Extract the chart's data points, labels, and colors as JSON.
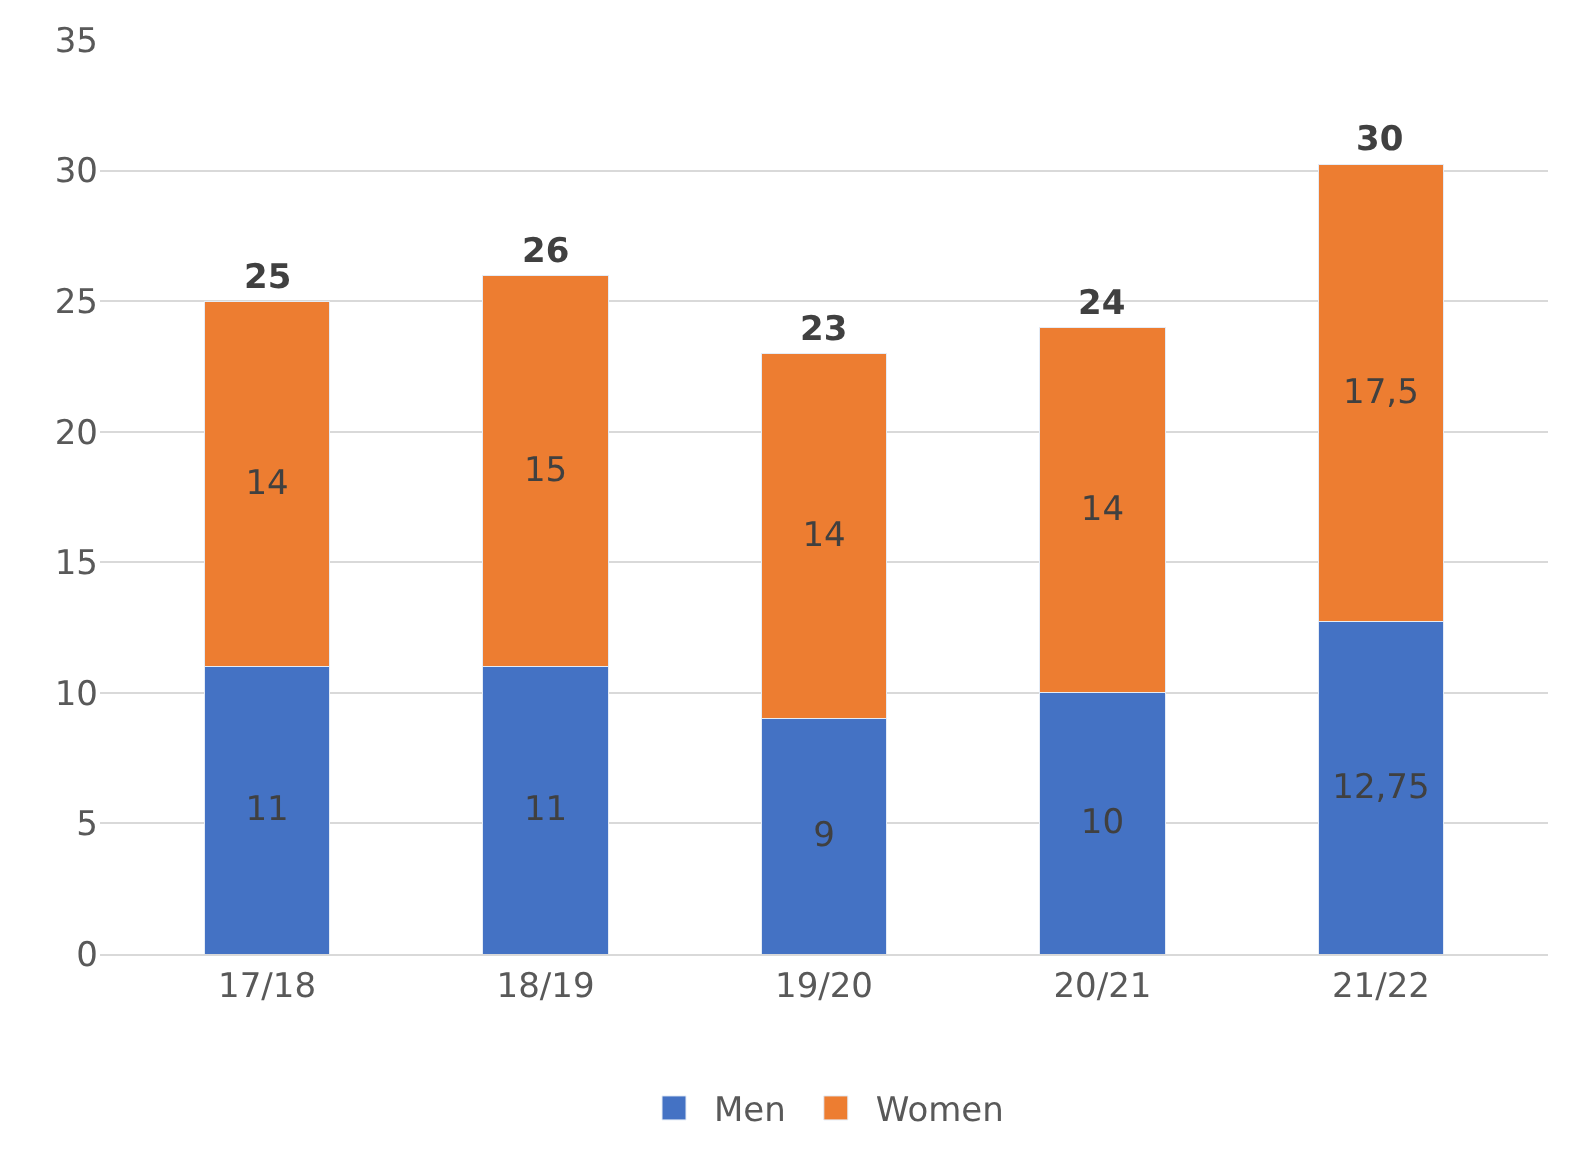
{
  "chart_data": {
    "type": "bar",
    "stacked": true,
    "categories": [
      "17/18",
      "18/19",
      "19/20",
      "20/21",
      "21/22"
    ],
    "series": [
      {
        "name": "Men",
        "color": "#4472c4",
        "values": [
          11,
          11,
          9,
          10,
          12.75
        ],
        "value_labels": [
          "11",
          "11",
          "9",
          "10",
          "12,75"
        ]
      },
      {
        "name": "Women",
        "color": "#ed7d31",
        "values": [
          14,
          15,
          14,
          14,
          17.5
        ],
        "value_labels": [
          "14",
          "15",
          "14",
          "14",
          "17,5"
        ]
      }
    ],
    "totals": [
      "25",
      "26",
      "23",
      "24",
      "30"
    ],
    "ylim": [
      0,
      35
    ],
    "yticks": [
      0,
      5,
      10,
      15,
      20,
      25,
      30,
      35
    ],
    "grid": "y",
    "legend": "bottom"
  }
}
